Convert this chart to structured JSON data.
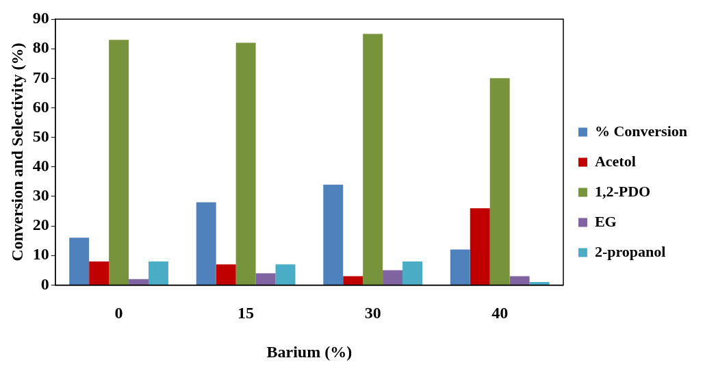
{
  "chart_data": {
    "type": "bar",
    "xlabel": "Barium (%)",
    "ylabel": "Conversion and Selectivity (%)",
    "categories": [
      "0",
      "15",
      "30",
      "40"
    ],
    "series": [
      {
        "name": "% Conversion",
        "color": "#4f81bd",
        "values": [
          16,
          28,
          34,
          12
        ]
      },
      {
        "name": "Acetol",
        "color": "#c00000",
        "values": [
          8,
          7,
          3,
          26
        ]
      },
      {
        "name": "1,2-PDO",
        "color": "#77933c",
        "values": [
          83,
          82,
          85,
          70
        ]
      },
      {
        "name": "EG",
        "color": "#8064a2",
        "values": [
          2,
          4,
          5,
          3
        ]
      },
      {
        "name": "2-propanol",
        "color": "#4bacc6",
        "values": [
          8,
          7,
          8,
          1
        ]
      }
    ],
    "ylim": [
      0,
      90
    ],
    "yticks": [
      0,
      10,
      20,
      30,
      40,
      50,
      60,
      70,
      80,
      90
    ],
    "grid": false,
    "legend": "right"
  }
}
